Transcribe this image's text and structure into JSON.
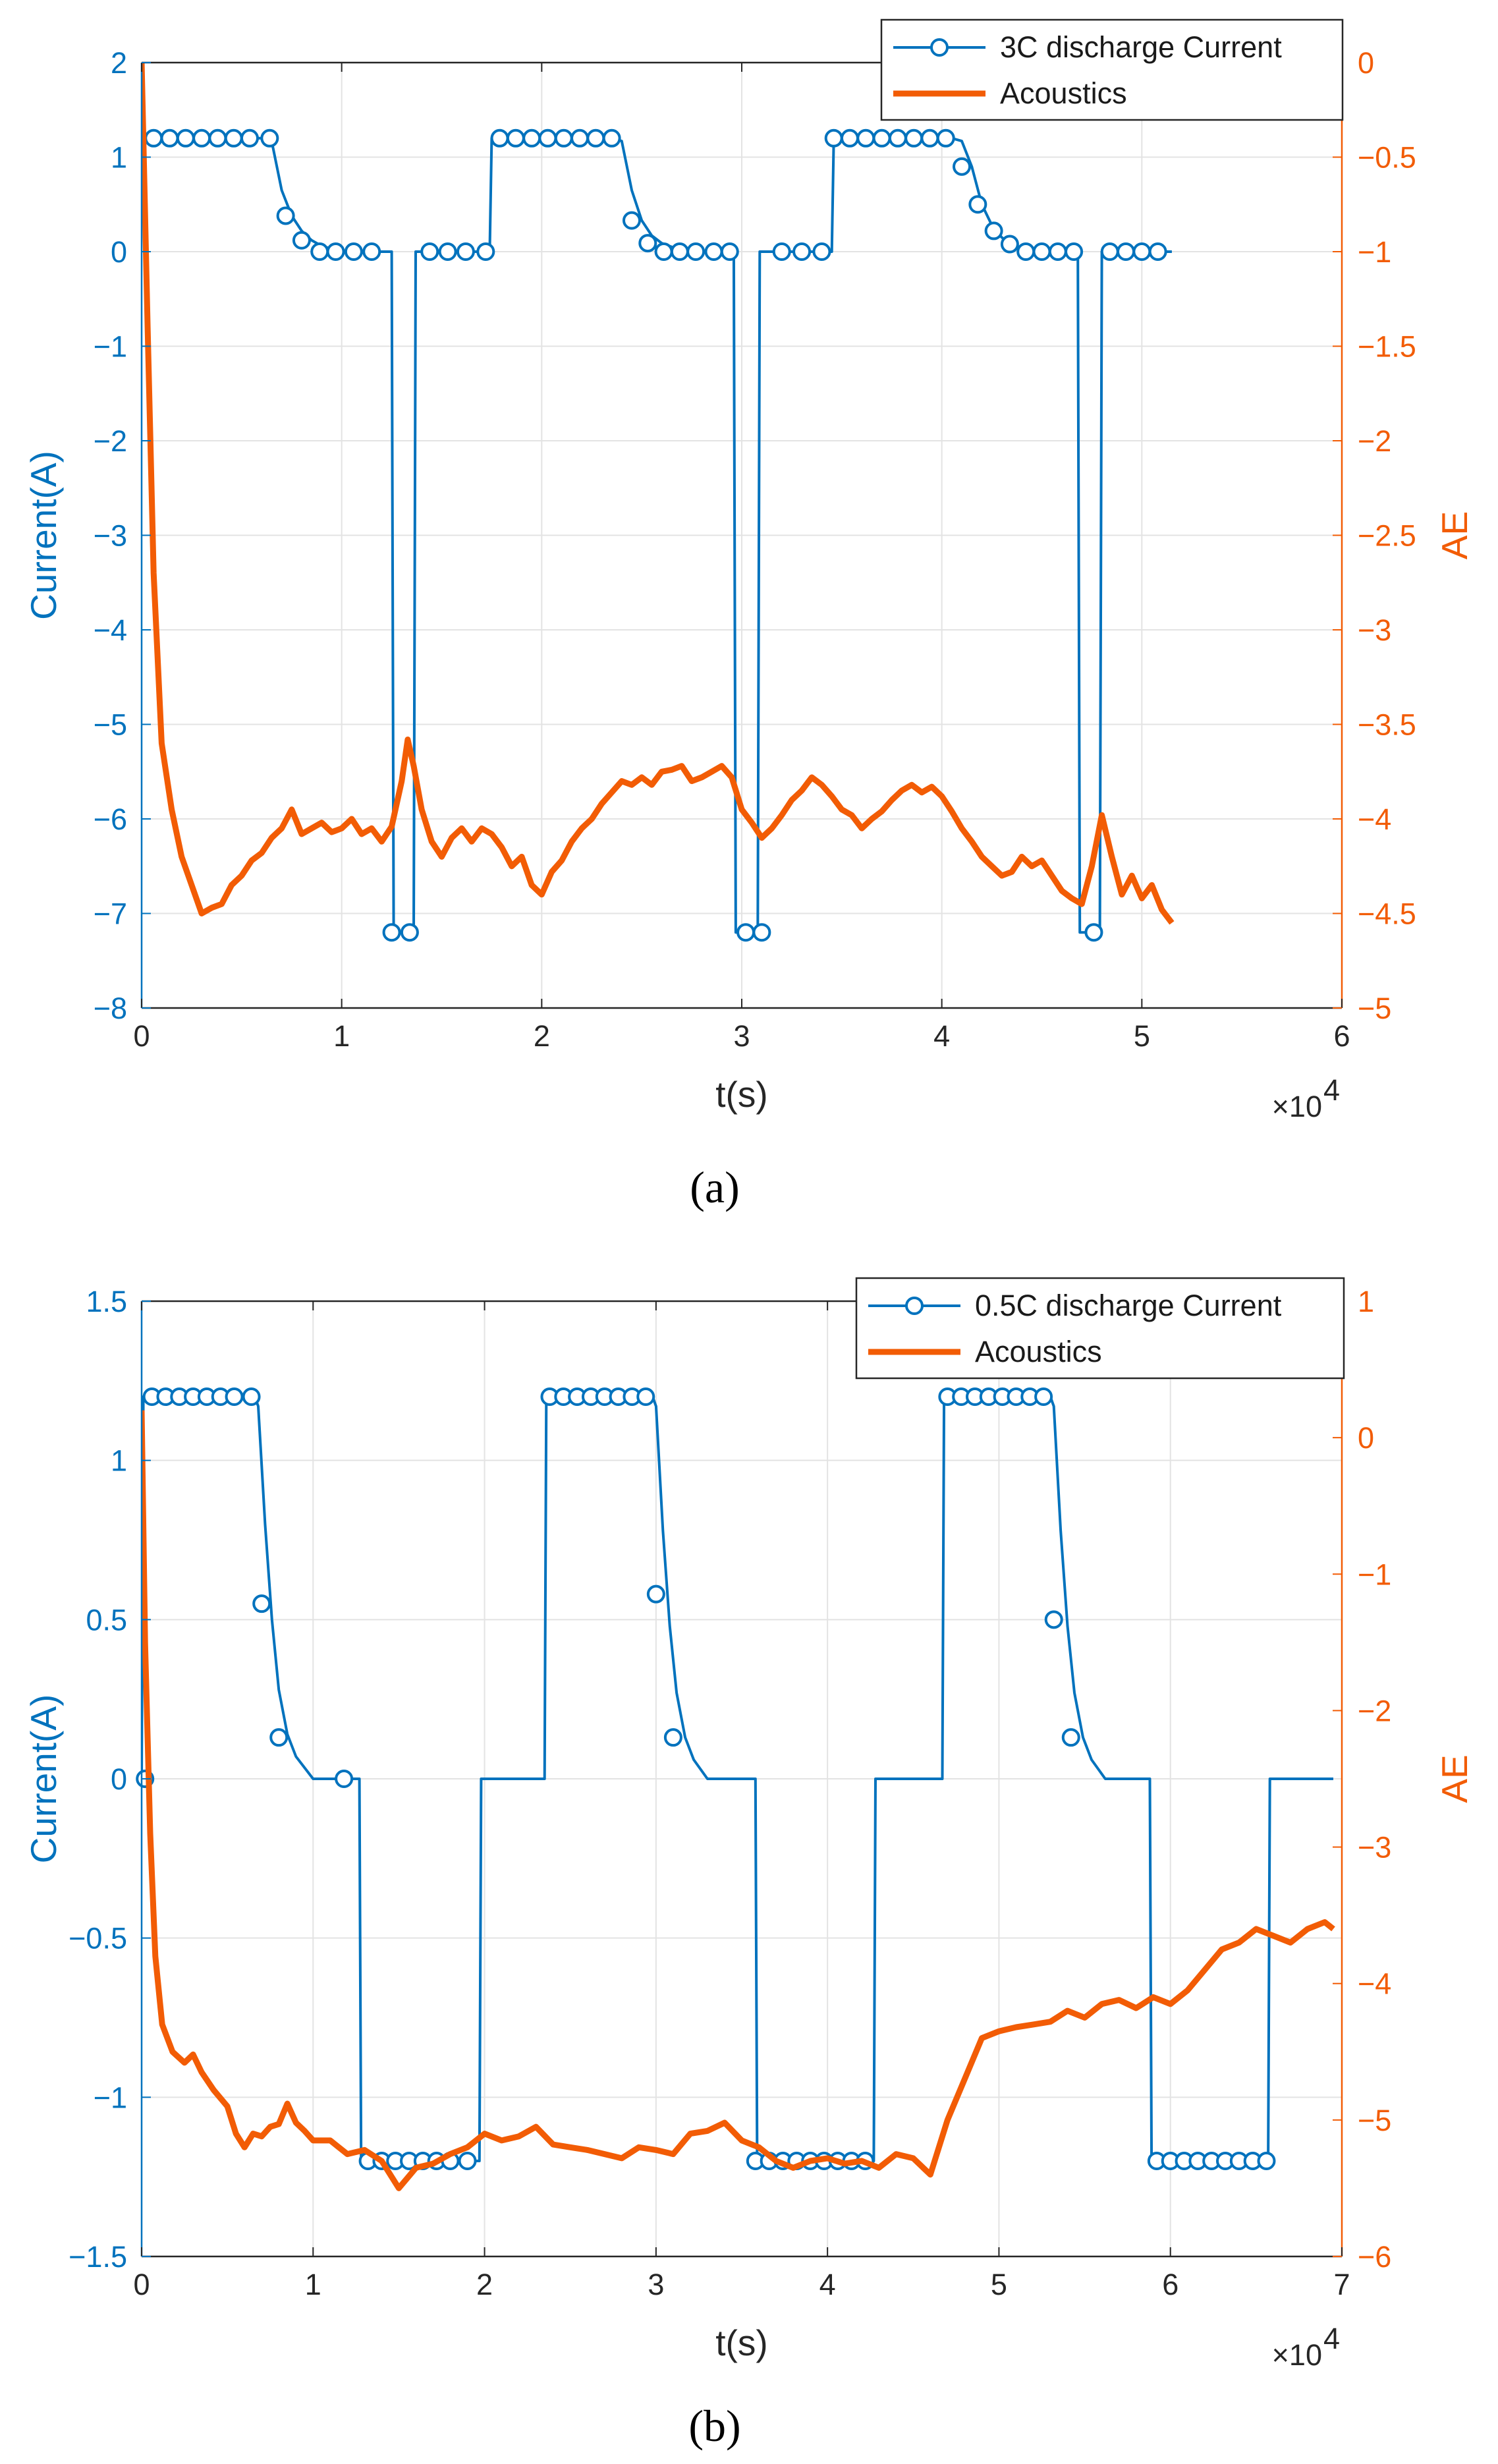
{
  "colors": {
    "current": "#0072BD",
    "acoustics": "#F25C05",
    "grid": "#e3e3e3",
    "axis": "#262626"
  },
  "chart_data": [
    {
      "type": "line",
      "panel_label": "a",
      "xlabel": "t(s)",
      "ylabel_left": "Current(A)",
      "ylabel_right": "AE",
      "x_exponent": "×10",
      "x_exponent_power": "4",
      "xlim": [
        0,
        6
      ],
      "ylim_left": [
        -8,
        2
      ],
      "ylim_right": [
        -5,
        0
      ],
      "xticks": [
        0,
        1,
        2,
        3,
        4,
        5,
        6
      ],
      "yticks_left": [
        -8,
        -7,
        -6,
        -5,
        -4,
        -3,
        -2,
        -1,
        0,
        1,
        2
      ],
      "yticks_right": [
        -5,
        -4.5,
        -4,
        -3.5,
        -3,
        -2.5,
        -2,
        -1.5,
        -1,
        -0.5,
        0
      ],
      "xtick_labels": [
        "0",
        "1",
        "2",
        "3",
        "4",
        "5",
        "6"
      ],
      "ytick_labels_left": [
        "−8",
        "−7",
        "−6",
        "−5",
        "−4",
        "−3",
        "−2",
        "−1",
        "0",
        "1",
        "2"
      ],
      "ytick_labels_right": [
        "−5",
        "−4.5",
        "−4",
        "−3.5",
        "−3",
        "−2.5",
        "−2",
        "−1.5",
        "−1",
        "−0.5",
        "0"
      ],
      "legend": [
        "3C discharge Current",
        "Acoustics"
      ],
      "legend_position": "top-right",
      "series": [
        {
          "name": "3C discharge Current",
          "axis": "left",
          "x": [
            0,
            0.005,
            0.01,
            0.6,
            0.65,
            0.7,
            0.75,
            0.8,
            0.85,
            0.9,
            0.95,
            1.0,
            1.1,
            1.25,
            1.26,
            1.36,
            1.37,
            1.74,
            1.75,
            2.35,
            2.4,
            2.45,
            2.5,
            2.55,
            2.6,
            2.65,
            2.7,
            2.8,
            2.96,
            2.97,
            3.08,
            3.09,
            3.45,
            3.46,
            4.05,
            4.1,
            4.15,
            4.2,
            4.25,
            4.3,
            4.35,
            4.4,
            4.5,
            4.68,
            4.69,
            4.79,
            4.8,
            5.15
          ],
          "values": [
            2.0,
            1.2,
            1.2,
            1.2,
            1.17,
            0.65,
            0.38,
            0.22,
            0.12,
            0.06,
            0.03,
            0.01,
            0.0,
            0.0,
            -7.2,
            -7.2,
            0.0,
            0.0,
            1.2,
            1.2,
            1.17,
            0.65,
            0.33,
            0.17,
            0.09,
            0.05,
            0.02,
            0.0,
            0.0,
            -7.2,
            -7.2,
            0.0,
            0.0,
            1.2,
            1.2,
            1.17,
            0.9,
            0.5,
            0.28,
            0.15,
            0.08,
            0.04,
            0.0,
            0.0,
            -7.2,
            -7.2,
            0.0,
            0.0
          ],
          "markers_x": [
            0.06,
            0.14,
            0.22,
            0.3,
            0.38,
            0.46,
            0.54,
            0.64,
            0.72,
            0.8,
            0.89,
            0.97,
            1.06,
            1.15,
            1.25,
            1.34,
            1.44,
            1.53,
            1.62,
            1.72,
            1.79,
            1.87,
            1.95,
            2.03,
            2.11,
            2.19,
            2.27,
            2.35,
            2.45,
            2.53,
            2.61,
            2.69,
            2.77,
            2.86,
            2.94,
            3.02,
            3.1,
            3.2,
            3.3,
            3.4,
            3.46,
            3.54,
            3.62,
            3.7,
            3.78,
            3.86,
            3.94,
            4.02,
            4.1,
            4.18,
            4.26,
            4.34,
            4.42,
            4.5,
            4.58,
            4.66,
            4.76,
            4.84,
            4.92,
            5.0,
            5.08
          ],
          "markers_y": [
            1.2,
            1.2,
            1.2,
            1.2,
            1.2,
            1.2,
            1.2,
            1.2,
            0.38,
            0.12,
            0.0,
            0.0,
            0.0,
            0.0,
            -7.2,
            -7.2,
            0.0,
            0.0,
            0.0,
            0.0,
            1.2,
            1.2,
            1.2,
            1.2,
            1.2,
            1.2,
            1.2,
            1.2,
            0.33,
            0.09,
            0.0,
            0.0,
            0.0,
            0.0,
            0.0,
            -7.2,
            -7.2,
            0.0,
            0.0,
            0.0,
            1.2,
            1.2,
            1.2,
            1.2,
            1.2,
            1.2,
            1.2,
            1.2,
            0.9,
            0.5,
            0.22,
            0.08,
            0.0,
            0.0,
            0.0,
            0.0,
            -7.2,
            0.0,
            0.0,
            0.0,
            0.0
          ]
        },
        {
          "name": "Acoustics",
          "axis": "right",
          "x": [
            0.0,
            0.03,
            0.06,
            0.1,
            0.15,
            0.2,
            0.25,
            0.3,
            0.35,
            0.4,
            0.45,
            0.5,
            0.55,
            0.6,
            0.65,
            0.7,
            0.75,
            0.8,
            0.85,
            0.9,
            0.95,
            1.0,
            1.05,
            1.1,
            1.15,
            1.2,
            1.25,
            1.3,
            1.33,
            1.36,
            1.4,
            1.45,
            1.5,
            1.55,
            1.6,
            1.65,
            1.7,
            1.75,
            1.8,
            1.85,
            1.9,
            1.95,
            2.0,
            2.05,
            2.1,
            2.15,
            2.2,
            2.25,
            2.3,
            2.35,
            2.4,
            2.45,
            2.5,
            2.55,
            2.6,
            2.65,
            2.7,
            2.75,
            2.8,
            2.85,
            2.9,
            2.95,
            3.0,
            3.05,
            3.1,
            3.15,
            3.2,
            3.25,
            3.3,
            3.35,
            3.4,
            3.45,
            3.5,
            3.55,
            3.6,
            3.65,
            3.7,
            3.75,
            3.8,
            3.85,
            3.9,
            3.95,
            4.0,
            4.05,
            4.1,
            4.15,
            4.2,
            4.25,
            4.3,
            4.35,
            4.4,
            4.45,
            4.5,
            4.55,
            4.6,
            4.65,
            4.7,
            4.75,
            4.8,
            4.85,
            4.9,
            4.95,
            5.0,
            5.05,
            5.1,
            5.15
          ],
          "values": [
            0.0,
            -1.4,
            -2.7,
            -3.6,
            -3.95,
            -4.2,
            -4.35,
            -4.5,
            -4.47,
            -4.45,
            -4.35,
            -4.3,
            -4.22,
            -4.18,
            -4.1,
            -4.05,
            -3.95,
            -4.08,
            -4.05,
            -4.02,
            -4.07,
            -4.05,
            -4.0,
            -4.08,
            -4.05,
            -4.12,
            -4.04,
            -3.8,
            -3.58,
            -3.72,
            -3.95,
            -4.12,
            -4.2,
            -4.1,
            -4.05,
            -4.12,
            -4.05,
            -4.08,
            -4.15,
            -4.25,
            -4.2,
            -4.35,
            -4.4,
            -4.28,
            -4.22,
            -4.12,
            -4.05,
            -4.0,
            -3.92,
            -3.86,
            -3.8,
            -3.82,
            -3.78,
            -3.82,
            -3.75,
            -3.74,
            -3.72,
            -3.8,
            -3.78,
            -3.75,
            -3.72,
            -3.78,
            -3.95,
            -4.02,
            -4.1,
            -4.05,
            -3.98,
            -3.9,
            -3.85,
            -3.78,
            -3.82,
            -3.88,
            -3.95,
            -3.98,
            -4.05,
            -4.0,
            -3.96,
            -3.9,
            -3.85,
            -3.82,
            -3.86,
            -3.83,
            -3.88,
            -3.96,
            -4.05,
            -4.12,
            -4.2,
            -4.25,
            -4.3,
            -4.28,
            -4.2,
            -4.25,
            -4.22,
            -4.3,
            -4.38,
            -4.42,
            -4.45,
            -4.25,
            -3.98,
            -4.2,
            -4.4,
            -4.3,
            -4.42,
            -4.35,
            -4.48,
            -4.55
          ]
        }
      ]
    },
    {
      "type": "line",
      "panel_label": "b",
      "xlabel": "t(s)",
      "ylabel_left": "Current(A)",
      "ylabel_right": "AE",
      "x_exponent": "×10",
      "x_exponent_power": "4",
      "xlim": [
        0,
        7
      ],
      "ylim_left": [
        -1.5,
        1.5
      ],
      "ylim_right": [
        -6,
        1
      ],
      "xticks": [
        0,
        1,
        2,
        3,
        4,
        5,
        6,
        7
      ],
      "yticks_left": [
        -1.5,
        -1,
        -0.5,
        0,
        0.5,
        1,
        1.5
      ],
      "yticks_right": [
        -6,
        -5,
        -4,
        -3,
        -2,
        -1,
        0,
        1
      ],
      "xtick_labels": [
        "0",
        "1",
        "2",
        "3",
        "4",
        "5",
        "6",
        "7"
      ],
      "ytick_labels_left": [
        "−1.5",
        "−1",
        "−0.5",
        "0",
        "0.5",
        "1",
        "1.5"
      ],
      "ytick_labels_right": [
        "−6",
        "−5",
        "−4",
        "−3",
        "−2",
        "−1",
        "0",
        "1"
      ],
      "legend": [
        "0.5C discharge Current",
        "Acoustics"
      ],
      "legend_position": "top-right",
      "series": [
        {
          "name": "0.5C discharge Current",
          "axis": "left",
          "x": [
            0,
            0.01,
            0.02,
            0.66,
            0.68,
            0.72,
            0.76,
            0.8,
            0.85,
            0.9,
            1.0,
            1.27,
            1.28,
            1.97,
            1.98,
            2.35,
            2.36,
            2.98,
            3.0,
            3.04,
            3.08,
            3.12,
            3.17,
            3.22,
            3.3,
            3.58,
            3.59,
            4.27,
            4.28,
            4.67,
            4.68,
            5.3,
            5.32,
            5.36,
            5.4,
            5.44,
            5.49,
            5.54,
            5.62,
            5.88,
            5.89,
            6.57,
            6.58,
            6.95
          ],
          "values": [
            0,
            1.2,
            1.2,
            1.2,
            1.17,
            0.8,
            0.5,
            0.28,
            0.14,
            0.07,
            0.0,
            0.0,
            -1.2,
            -1.2,
            0.0,
            0.0,
            1.2,
            1.2,
            1.17,
            0.78,
            0.48,
            0.27,
            0.13,
            0.06,
            0.0,
            0.0,
            -1.2,
            -1.2,
            0.0,
            0.0,
            1.2,
            1.2,
            1.17,
            0.78,
            0.48,
            0.27,
            0.13,
            0.06,
            0.0,
            0.0,
            -1.2,
            -1.2,
            0.0,
            0.0
          ],
          "markers_x": [
            0.02,
            0.06,
            0.14,
            0.22,
            0.3,
            0.38,
            0.46,
            0.54,
            0.64,
            0.7,
            0.8,
            1.18,
            1.32,
            1.4,
            1.48,
            1.56,
            1.64,
            1.72,
            1.8,
            1.9,
            2.38,
            2.46,
            2.54,
            2.62,
            2.7,
            2.78,
            2.86,
            2.94,
            3.0,
            3.1,
            3.58,
            3.66,
            3.74,
            3.82,
            3.9,
            3.98,
            4.06,
            4.14,
            4.22,
            4.7,
            4.78,
            4.86,
            4.94,
            5.02,
            5.1,
            5.18,
            5.26,
            5.32,
            5.42,
            5.92,
            6.0,
            6.08,
            6.16,
            6.24,
            6.32,
            6.4,
            6.48,
            6.56
          ],
          "markers_y": [
            0.0,
            1.2,
            1.2,
            1.2,
            1.2,
            1.2,
            1.2,
            1.2,
            1.2,
            0.55,
            0.13,
            0.0,
            -1.2,
            -1.2,
            -1.2,
            -1.2,
            -1.2,
            -1.2,
            -1.2,
            -1.2,
            1.2,
            1.2,
            1.2,
            1.2,
            1.2,
            1.2,
            1.2,
            1.2,
            0.58,
            0.13,
            -1.2,
            -1.2,
            -1.2,
            -1.2,
            -1.2,
            -1.2,
            -1.2,
            -1.2,
            -1.2,
            1.2,
            1.2,
            1.2,
            1.2,
            1.2,
            1.2,
            1.2,
            1.2,
            0.5,
            0.13,
            -1.2,
            -1.2,
            -1.2,
            -1.2,
            -1.2,
            -1.2,
            -1.2,
            -1.2,
            -1.2
          ]
        },
        {
          "name": "Acoustics",
          "axis": "right",
          "x": [
            0.0,
            0.02,
            0.05,
            0.08,
            0.12,
            0.18,
            0.25,
            0.3,
            0.35,
            0.42,
            0.5,
            0.55,
            0.6,
            0.65,
            0.7,
            0.75,
            0.8,
            0.85,
            0.9,
            0.95,
            1.0,
            1.1,
            1.2,
            1.3,
            1.4,
            1.5,
            1.6,
            1.7,
            1.8,
            1.9,
            2.0,
            2.1,
            2.2,
            2.3,
            2.4,
            2.5,
            2.6,
            2.7,
            2.8,
            2.9,
            3.0,
            3.1,
            3.2,
            3.3,
            3.4,
            3.5,
            3.6,
            3.7,
            3.8,
            3.9,
            4.0,
            4.1,
            4.2,
            4.3,
            4.4,
            4.5,
            4.6,
            4.7,
            4.8,
            4.9,
            5.0,
            5.1,
            5.2,
            5.3,
            5.4,
            5.5,
            5.6,
            5.7,
            5.8,
            5.9,
            6.0,
            6.1,
            6.2,
            6.3,
            6.4,
            6.5,
            6.6,
            6.7,
            6.8,
            6.9,
            6.95
          ],
          "values": [
            0.2,
            -1.5,
            -2.9,
            -3.8,
            -4.3,
            -4.5,
            -4.58,
            -4.52,
            -4.65,
            -4.78,
            -4.9,
            -5.1,
            -5.2,
            -5.1,
            -5.12,
            -5.05,
            -5.03,
            -4.88,
            -5.02,
            -5.08,
            -5.15,
            -5.15,
            -5.25,
            -5.22,
            -5.3,
            -5.5,
            -5.35,
            -5.32,
            -5.25,
            -5.2,
            -5.1,
            -5.15,
            -5.12,
            -5.05,
            -5.18,
            -5.2,
            -5.22,
            -5.25,
            -5.28,
            -5.2,
            -5.22,
            -5.25,
            -5.1,
            -5.08,
            -5.02,
            -5.15,
            -5.2,
            -5.3,
            -5.35,
            -5.3,
            -5.28,
            -5.32,
            -5.3,
            -5.35,
            -5.25,
            -5.28,
            -5.4,
            -5.0,
            -4.7,
            -4.4,
            -4.35,
            -4.32,
            -4.3,
            -4.28,
            -4.2,
            -4.25,
            -4.15,
            -4.12,
            -4.18,
            -4.1,
            -4.15,
            -4.05,
            -3.9,
            -3.75,
            -3.7,
            -3.6,
            -3.65,
            -3.7,
            -3.6,
            -3.55,
            -3.6
          ]
        }
      ]
    }
  ],
  "captions": [
    "(a)",
    "(b)"
  ]
}
